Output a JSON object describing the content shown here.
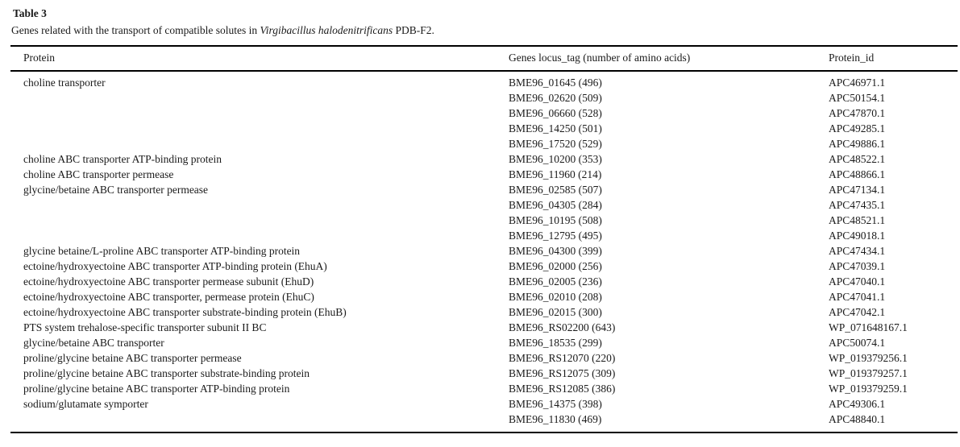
{
  "colors": {
    "background": "#ffffff",
    "text": "#1a1a1a",
    "rule": "#000000"
  },
  "table": {
    "label": "Table 3",
    "caption": {
      "prefix": "Genes related with the transport of compatible solutes in ",
      "species": "Virgibacillus halodenitrificans",
      "suffix": " PDB-F2."
    },
    "columns": [
      "Protein",
      "Genes locus_tag (number of amino acids)",
      "Protein_id"
    ],
    "rows": [
      {
        "protein": "choline transporter",
        "locus_tag": "BME96_01645 (496)",
        "protein_id": "APC46971.1"
      },
      {
        "protein": "",
        "locus_tag": "BME96_02620 (509)",
        "protein_id": "APC50154.1"
      },
      {
        "protein": "",
        "locus_tag": "BME96_06660 (528)",
        "protein_id": "APC47870.1"
      },
      {
        "protein": "",
        "locus_tag": "BME96_14250 (501)",
        "protein_id": "APC49285.1"
      },
      {
        "protein": "",
        "locus_tag": "BME96_17520 (529)",
        "protein_id": "APC49886.1"
      },
      {
        "protein": "choline ABC transporter ATP-binding protein",
        "locus_tag": "BME96_10200 (353)",
        "protein_id": "APC48522.1"
      },
      {
        "protein": "choline ABC transporter permease",
        "locus_tag": "BME96_11960 (214)",
        "protein_id": "APC48866.1"
      },
      {
        "protein": "glycine/betaine ABC transporter permease",
        "locus_tag": "BME96_02585 (507)",
        "protein_id": "APC47134.1"
      },
      {
        "protein": "",
        "locus_tag": "BME96_04305 (284)",
        "protein_id": "APC47435.1"
      },
      {
        "protein": "",
        "locus_tag": "BME96_10195 (508)",
        "protein_id": "APC48521.1"
      },
      {
        "protein": "",
        "locus_tag": "BME96_12795 (495)",
        "protein_id": "APC49018.1"
      },
      {
        "protein": "glycine betaine/L-proline ABC transporter ATP-binding protein",
        "locus_tag": "BME96_04300 (399)",
        "protein_id": "APC47434.1"
      },
      {
        "protein": "ectoine/hydroxyectoine ABC transporter ATP-binding protein (EhuA)",
        "locus_tag": "BME96_02000 (256)",
        "protein_id": "APC47039.1"
      },
      {
        "protein": "ectoine/hydroxyectoine ABC transporter permease subunit (EhuD)",
        "locus_tag": "BME96_02005 (236)",
        "protein_id": "APC47040.1"
      },
      {
        "protein": "ectoine/hydroxyectoine ABC transporter, permease protein (EhuC)",
        "locus_tag": "BME96_02010 (208)",
        "protein_id": "APC47041.1"
      },
      {
        "protein": "ectoine/hydroxyectoine ABC transporter substrate-binding protein (EhuB)",
        "locus_tag": "BME96_02015 (300)",
        "protein_id": "APC47042.1"
      },
      {
        "protein": "PTS system trehalose-specific transporter subunit II BC",
        "locus_tag": "BME96_RS02200 (643)",
        "protein_id": "WP_071648167.1"
      },
      {
        "protein": "glycine/betaine ABC transporter",
        "locus_tag": "BME96_18535 (299)",
        "protein_id": "APC50074.1"
      },
      {
        "protein": "proline/glycine betaine ABC transporter permease",
        "locus_tag": "BME96_RS12070 (220)",
        "protein_id": "WP_019379256.1"
      },
      {
        "protein": "proline/glycine betaine ABC transporter substrate-binding protein",
        "locus_tag": "BME96_RS12075 (309)",
        "protein_id": "WP_019379257.1"
      },
      {
        "protein": "proline/glycine betaine ABC transporter ATP-binding protein",
        "locus_tag": "BME96_RS12085 (386)",
        "protein_id": "WP_019379259.1"
      },
      {
        "protein": "sodium/glutamate symporter",
        "locus_tag": "BME96_14375 (398)",
        "protein_id": "APC49306.1"
      },
      {
        "protein": "",
        "locus_tag": "BME96_11830 (469)",
        "protein_id": "APC48840.1"
      }
    ]
  }
}
